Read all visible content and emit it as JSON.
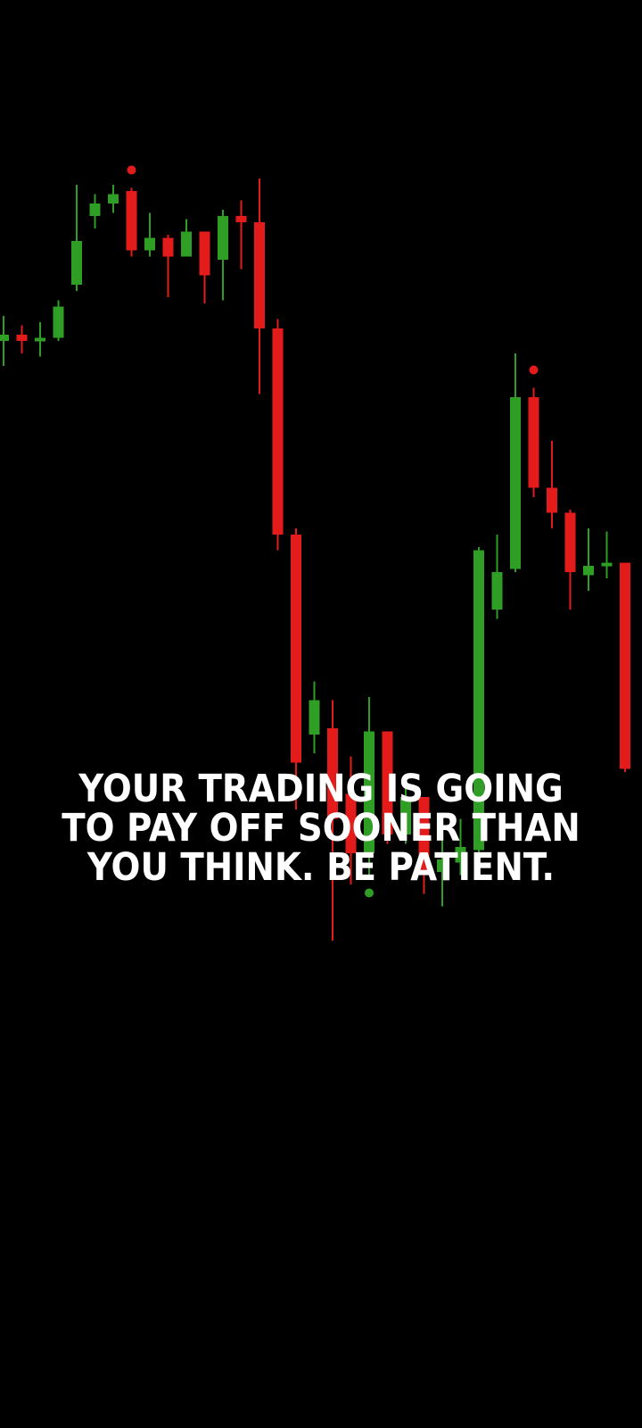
{
  "quote": {
    "line1": "YOUR TRADING IS GOING",
    "line2": "TO PAY OFF SOONER THAN",
    "line3": "YOU THINK. BE PATIENT."
  },
  "colors": {
    "background": "#000000",
    "bullish": "#2e9e25",
    "bearish": "#e31b1b",
    "text": "#ffffff"
  },
  "candles": [
    {
      "dir": "up",
      "open": 88,
      "close": 90,
      "high": 96,
      "low": 80
    },
    {
      "dir": "down",
      "open": 90,
      "close": 88,
      "high": 93,
      "low": 84
    },
    {
      "dir": "up",
      "open": 88,
      "close": 89,
      "high": 94,
      "low": 83
    },
    {
      "dir": "up",
      "open": 89,
      "close": 99,
      "high": 101,
      "low": 88
    },
    {
      "dir": "up",
      "open": 106,
      "close": 120,
      "high": 138,
      "low": 104
    },
    {
      "dir": "up",
      "open": 128,
      "close": 132,
      "high": 135,
      "low": 124
    },
    {
      "dir": "up",
      "open": 132,
      "close": 135,
      "high": 138,
      "low": 129
    },
    {
      "dir": "down",
      "open": 136,
      "close": 117,
      "high": 137,
      "low": 115,
      "marker": "high"
    },
    {
      "dir": "up",
      "open": 117,
      "close": 121,
      "high": 129,
      "low": 115
    },
    {
      "dir": "down",
      "open": 121,
      "close": 115,
      "high": 122,
      "low": 102
    },
    {
      "dir": "up",
      "open": 115,
      "close": 123,
      "high": 127,
      "low": 115
    },
    {
      "dir": "down",
      "open": 123,
      "close": 109,
      "high": 123,
      "low": 100
    },
    {
      "dir": "up",
      "open": 114,
      "close": 128,
      "high": 130,
      "low": 101
    },
    {
      "dir": "down",
      "open": 128,
      "close": 126,
      "high": 133,
      "low": 111
    },
    {
      "dir": "down",
      "open": 126,
      "close": 92,
      "high": 140,
      "low": 71
    },
    {
      "dir": "down",
      "open": 92,
      "close": 26,
      "high": 95,
      "low": 21
    },
    {
      "dir": "down",
      "open": 26,
      "close": -47,
      "high": 28,
      "low": -62
    },
    {
      "dir": "up",
      "open": -38,
      "close": -27,
      "high": -21,
      "low": -44
    },
    {
      "dir": "down",
      "open": -36,
      "close": -65,
      "high": -27,
      "low": -104
    },
    {
      "dir": "down",
      "open": -57,
      "close": -76,
      "high": -45,
      "low": -86
    },
    {
      "dir": "up",
      "open": -76,
      "close": -37,
      "high": -26,
      "low": -83,
      "marker": "low"
    },
    {
      "dir": "down",
      "open": -37,
      "close": -70,
      "high": -37,
      "low": -73
    },
    {
      "dir": "up",
      "open": -70,
      "close": -58,
      "high": -52,
      "low": -73
    },
    {
      "dir": "down",
      "open": -58,
      "close": -83,
      "high": -58,
      "low": -89
    },
    {
      "dir": "up",
      "open": -82,
      "close": -78,
      "high": -67,
      "low": -93
    },
    {
      "dir": "up",
      "open": -79,
      "close": -74,
      "high": -65,
      "low": -83
    },
    {
      "dir": "up",
      "open": -75,
      "close": 21,
      "high": 22,
      "low": -78
    },
    {
      "dir": "up",
      "open": 2,
      "close": 14,
      "high": 26,
      "low": -1
    },
    {
      "dir": "up",
      "open": 15,
      "close": 70,
      "high": 84,
      "low": 14
    },
    {
      "dir": "down",
      "open": 70,
      "close": 41,
      "high": 73,
      "low": 38,
      "marker": "high"
    },
    {
      "dir": "down",
      "open": 41,
      "close": 33,
      "high": 56,
      "low": 28
    },
    {
      "dir": "down",
      "open": 33,
      "close": 14,
      "high": 34,
      "low": 2
    },
    {
      "dir": "up",
      "open": 13,
      "close": 16,
      "high": 28,
      "low": 8
    },
    {
      "dir": "up",
      "open": 16,
      "close": 17,
      "high": 27,
      "low": 12
    },
    {
      "dir": "down",
      "open": 17,
      "close": -49,
      "high": 17,
      "low": -50
    }
  ]
}
